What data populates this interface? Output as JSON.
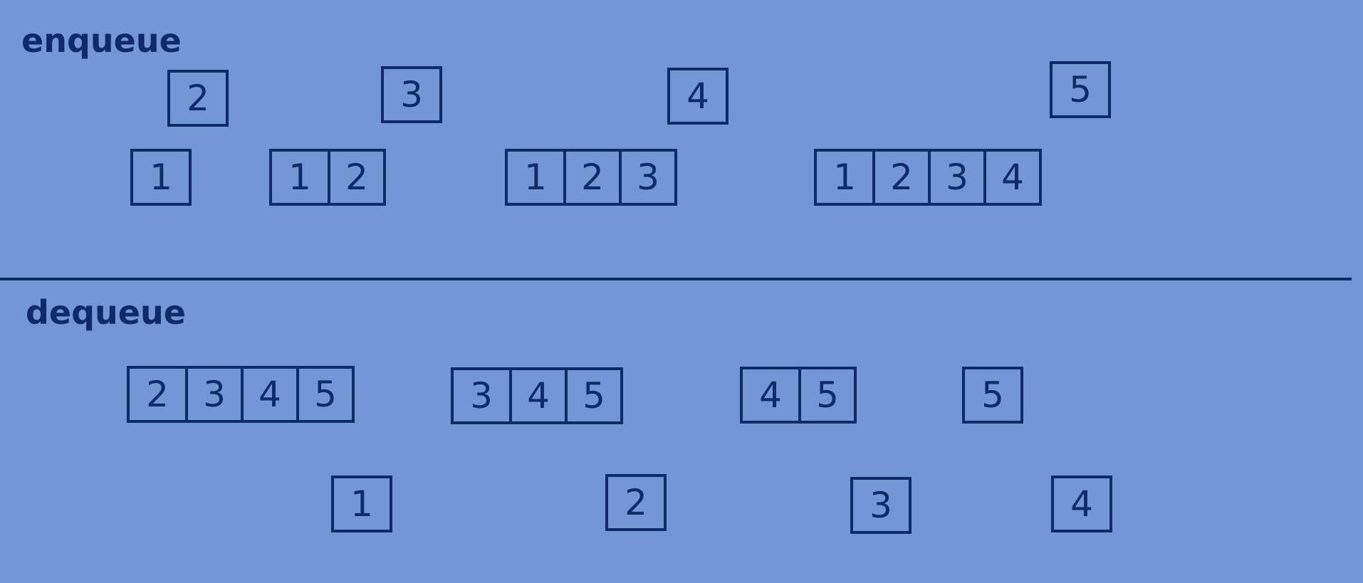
{
  "enqueue": {
    "title": "enqueue",
    "incoming": [
      "2",
      "3",
      "4",
      "5"
    ],
    "queues": [
      [
        "1"
      ],
      [
        "1",
        "2"
      ],
      [
        "1",
        "2",
        "3"
      ],
      [
        "1",
        "2",
        "3",
        "4"
      ]
    ]
  },
  "dequeue": {
    "title": "dequeue",
    "queues": [
      [
        "2",
        "3",
        "4",
        "5"
      ],
      [
        "3",
        "4",
        "5"
      ],
      [
        "4",
        "5"
      ],
      [
        "5"
      ]
    ],
    "outgoing": [
      "1",
      "2",
      "3",
      "4"
    ]
  },
  "colors": {
    "background": "#7297d4",
    "ink": "#0e2a68"
  }
}
